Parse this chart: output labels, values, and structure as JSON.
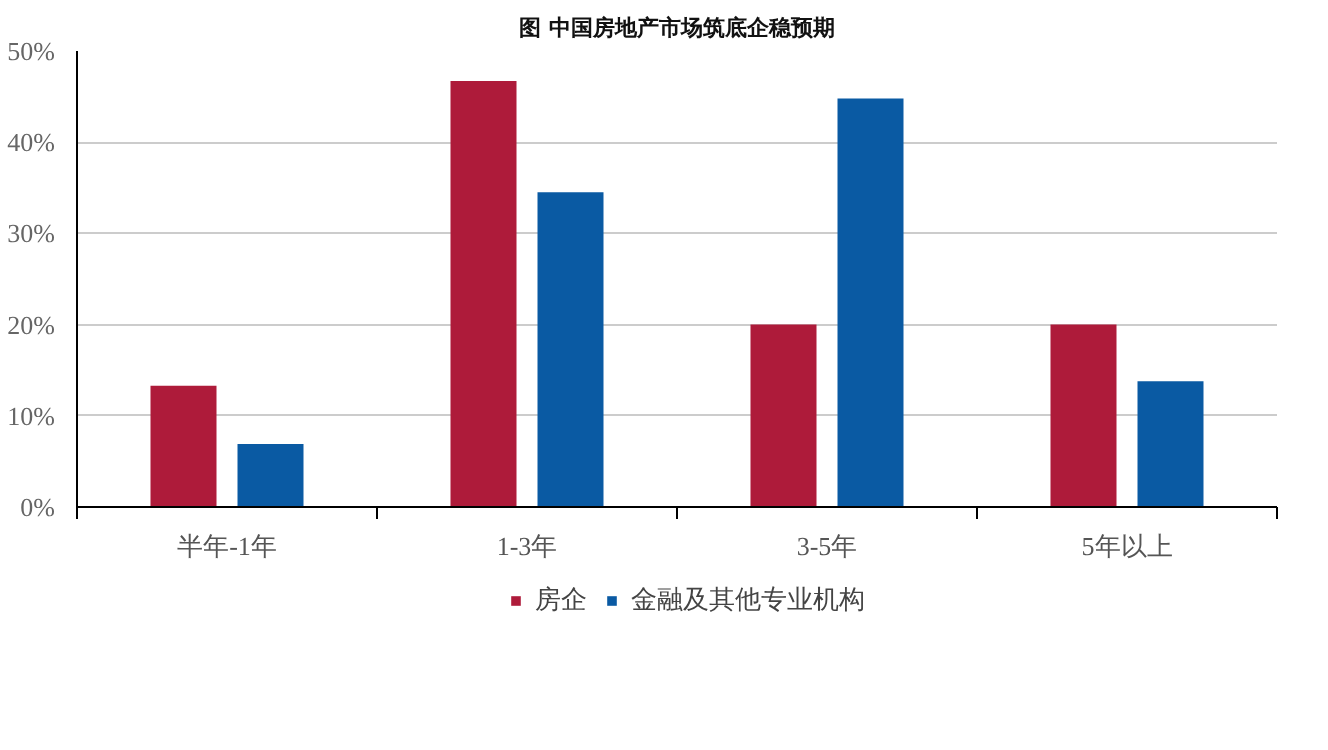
{
  "chart_data": {
    "type": "bar",
    "title": "图 中国房地产市场筑底企稳预期",
    "categories": [
      "半年-1年",
      "1-3年",
      "3-5年",
      "5年以上"
    ],
    "series": [
      {
        "name": "房企",
        "color": "#ae1b3a",
        "values": [
          13.3,
          46.7,
          20,
          20
        ]
      },
      {
        "name": "金融及其他专业机构",
        "color": "#0a5aa3",
        "values": [
          6.9,
          34.5,
          44.8,
          13.8
        ]
      }
    ],
    "ylim": [
      0,
      50
    ],
    "yticks": [
      {
        "value": 0,
        "label": "0%"
      },
      {
        "value": 10,
        "label": "10%"
      },
      {
        "value": 20,
        "label": "20%"
      },
      {
        "value": 30,
        "label": "30%"
      },
      {
        "value": 40,
        "label": "40%"
      },
      {
        "value": 50,
        "label": "50%"
      }
    ],
    "grid": "y",
    "legend": "bottom"
  }
}
